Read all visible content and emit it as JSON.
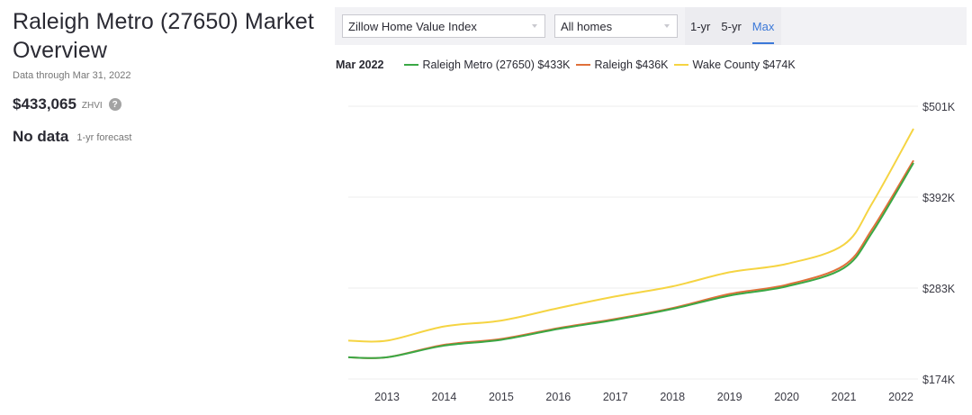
{
  "header": {
    "title_line1": "Raleigh Metro (27650) Market",
    "title_line2": "Overview",
    "data_through": "Data through Mar 31, 2022"
  },
  "zhvi": {
    "value": "$433,065",
    "label": "ZHVI",
    "help_icon": "?"
  },
  "forecast": {
    "value": "No data",
    "label": "1-yr forecast"
  },
  "toolbar": {
    "metric_select": "Zillow Home Value Index",
    "home_type_select": "All homes",
    "ranges": [
      {
        "label": "1-yr",
        "active": false
      },
      {
        "label": "5-yr",
        "active": false
      },
      {
        "label": "Max",
        "active": true
      }
    ]
  },
  "legend": {
    "date": "Mar 2022",
    "items": [
      {
        "label": "Raleigh Metro (27650) $433K",
        "color": "#3aa845"
      },
      {
        "label": "Raleigh $436K",
        "color": "#e0703a"
      },
      {
        "label": "Wake County $474K",
        "color": "#f5d442"
      }
    ]
  },
  "chart_data": {
    "type": "line",
    "title": "",
    "xlabel": "",
    "ylabel": "",
    "x": [
      2012.3,
      2013,
      2014,
      2015,
      2016,
      2017,
      2018,
      2019,
      2020,
      2021,
      2021.5,
      2022.25
    ],
    "x_tick_labels": [
      "2013",
      "2014",
      "2015",
      "2016",
      "2017",
      "2018",
      "2019",
      "2020",
      "2021",
      "2022"
    ],
    "y_tick_labels": [
      "$501K",
      "$392K",
      "$283K",
      "$174K"
    ],
    "y_ticks": [
      501,
      392,
      283,
      174
    ],
    "ylim": [
      174,
      501
    ],
    "grid": true,
    "legend_position": "top",
    "series": [
      {
        "name": "Raleigh Metro (27650)",
        "color": "#3aa845",
        "values": [
          200,
          200,
          214,
          221,
          234,
          245,
          258,
          274,
          285,
          307,
          350,
          433
        ]
      },
      {
        "name": "Raleigh",
        "color": "#e0703a",
        "values": [
          200,
          200,
          215,
          222,
          235,
          246,
          259,
          276,
          287,
          310,
          354,
          436
        ]
      },
      {
        "name": "Wake County",
        "color": "#f5d442",
        "values": [
          220,
          220,
          237,
          244,
          259,
          273,
          285,
          302,
          312,
          335,
          385,
          474
        ]
      }
    ]
  }
}
